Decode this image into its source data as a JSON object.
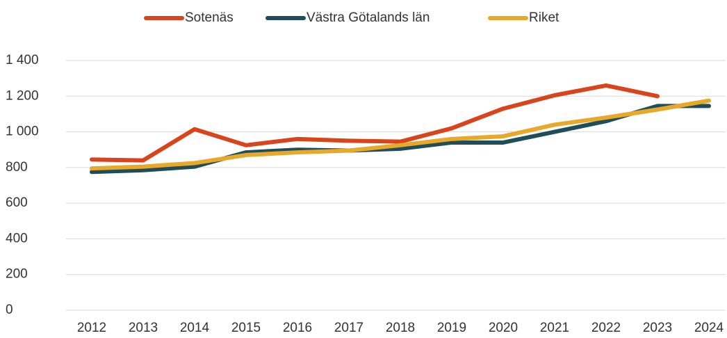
{
  "chart_data": {
    "type": "line",
    "categories": [
      "2012",
      "2013",
      "2014",
      "2015",
      "2016",
      "2017",
      "2018",
      "2019",
      "2020",
      "2021",
      "2022",
      "2023",
      "2024"
    ],
    "series": [
      {
        "name": "Sotenäs",
        "color": "#d9441c",
        "values": [
          845,
          840,
          1015,
          925,
          960,
          950,
          945,
          1020,
          1130,
          1205,
          1260,
          1200,
          null
        ]
      },
      {
        "name": "Västra Götalands län",
        "color": "#1f4e5a",
        "values": [
          775,
          785,
          805,
          885,
          900,
          895,
          905,
          940,
          940,
          1000,
          1060,
          1145,
          1145
        ]
      },
      {
        "name": "Riket",
        "color": "#e8a82a",
        "values": [
          795,
          805,
          825,
          870,
          885,
          895,
          925,
          960,
          975,
          1040,
          1080,
          1125,
          1175
        ]
      }
    ],
    "ylim": [
      0,
      1400
    ],
    "yticks": [
      0,
      200,
      400,
      600,
      800,
      {
        "value": 1000,
        "label": "1 000"
      },
      {
        "value": 1200,
        "label": "1 200"
      },
      {
        "value": 1400,
        "label": "1 400"
      }
    ],
    "grid": true,
    "legend": "top"
  }
}
